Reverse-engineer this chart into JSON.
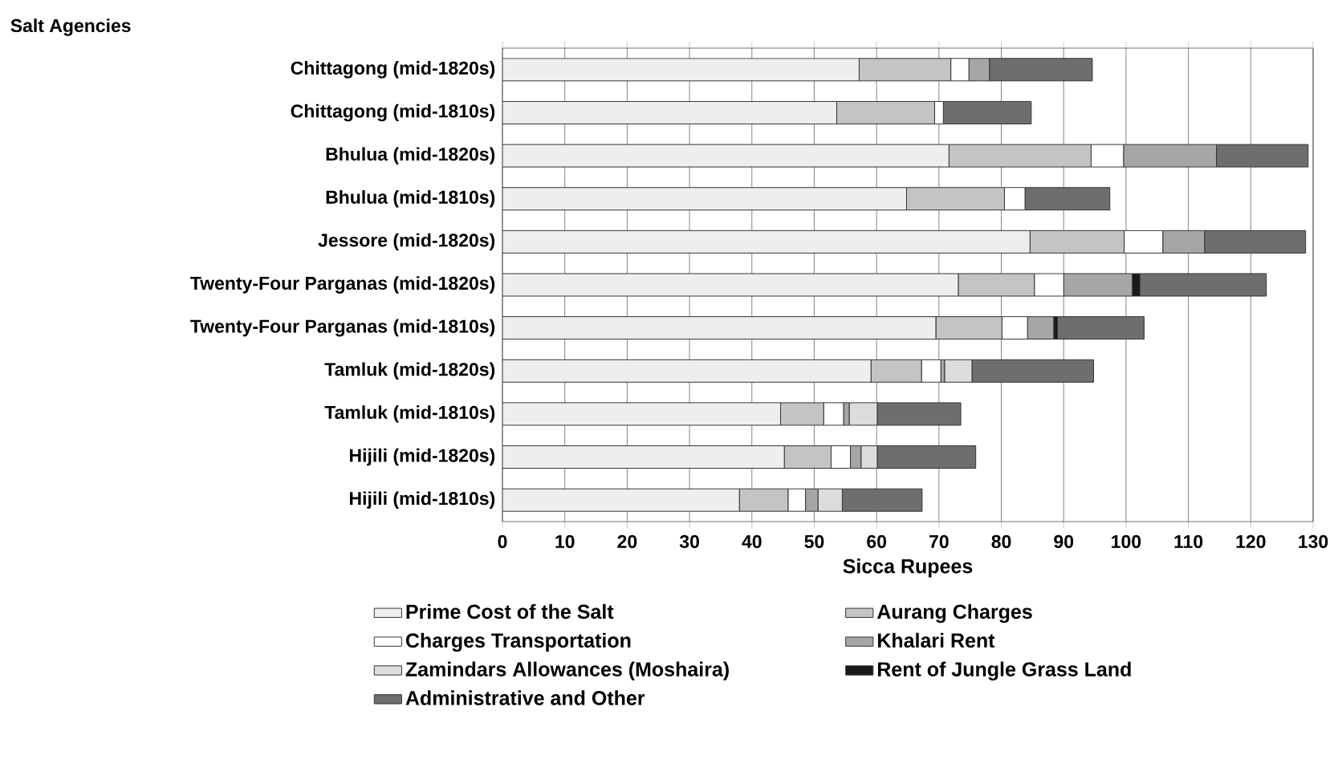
{
  "chart_data": {
    "type": "bar",
    "orientation": "horizontal",
    "stacked": true,
    "ylabel": "Salt Agencies",
    "xlabel": "Sicca Rupees",
    "categories": [
      "Chittagong (mid-1820s)",
      "Chittagong (mid-1810s)",
      "Bhulua (mid-1820s)",
      "Bhulua (mid-1810s)",
      "Jessore (mid-1820s)",
      "Twenty-Four Parganas (mid-1820s)",
      "Twenty-Four Parganas (mid-1810s)",
      "Tamluk (mid-1820s)",
      "Tamluk (mid-1810s)",
      "Hijili (mid-1820s)",
      "Hijili (mid-1810s)"
    ],
    "series": [
      {
        "name": "Prime Cost of the Salt",
        "color": "#eeeeee",
        "values": [
          57.2,
          53.6,
          71.6,
          64.8,
          84.6,
          73.1,
          69.5,
          59.1,
          44.6,
          45.2,
          38.0
        ]
      },
      {
        "name": "Aurang Charges",
        "color": "#c4c4c4",
        "values": [
          14.7,
          15.7,
          22.8,
          15.7,
          15.1,
          12.2,
          10.6,
          8.1,
          6.9,
          7.5,
          7.8
        ]
      },
      {
        "name": "Charges Transportation",
        "color": "#ffffff",
        "values": [
          2.9,
          1.4,
          5.2,
          3.3,
          6.2,
          4.7,
          4.1,
          3.1,
          3.2,
          3.1,
          2.8
        ]
      },
      {
        "name": "Khalari Rent",
        "color": "#a6a6a6",
        "values": [
          3.3,
          null,
          14.9,
          null,
          6.7,
          11.0,
          4.2,
          0.6,
          0.9,
          1.7,
          2.0
        ]
      },
      {
        "name": "Zamindars Allowances (Moshaira)",
        "color": "#dcdcdc",
        "values": [
          null,
          null,
          null,
          null,
          null,
          null,
          null,
          4.4,
          4.5,
          2.6,
          3.9
        ]
      },
      {
        "name": "Rent of Jungle Grass Land",
        "color": "#1a1a1a",
        "values": [
          null,
          null,
          null,
          null,
          null,
          1.2,
          0.6,
          null,
          null,
          null,
          null
        ]
      },
      {
        "name": "Administrative and Other",
        "color": "#6e6e6e",
        "values": [
          16.5,
          14.1,
          14.7,
          13.6,
          16.2,
          20.3,
          13.9,
          19.5,
          13.4,
          15.8,
          12.8
        ]
      }
    ],
    "xlim": [
      0,
      130
    ],
    "xticks": [
      0,
      10,
      20,
      30,
      40,
      50,
      60,
      70,
      80,
      90,
      100,
      110,
      120,
      130
    ],
    "grid": "x",
    "legend": "bottom"
  }
}
